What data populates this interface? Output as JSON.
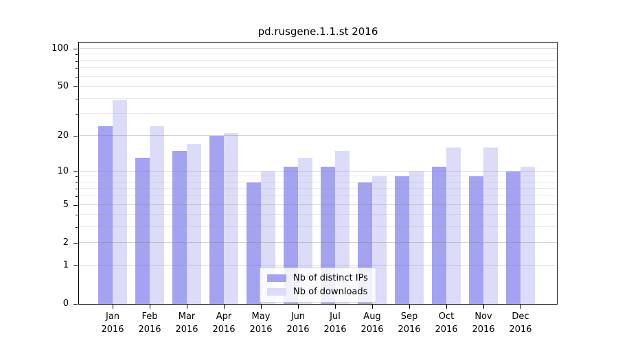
{
  "chart_data": {
    "type": "bar",
    "title": "pd.rusgene.1.1.st 2016",
    "categories": [
      "Jan",
      "Feb",
      "Mar",
      "Apr",
      "May",
      "Jun",
      "Jul",
      "Aug",
      "Sep",
      "Oct",
      "Nov",
      "Dec"
    ],
    "category_year": "2016",
    "series": [
      {
        "name": "Nb of distinct IPs",
        "color": "#a3a3f2",
        "values": [
          24,
          13,
          15,
          20,
          8,
          11,
          11,
          8,
          9,
          11,
          9,
          10
        ]
      },
      {
        "name": "Nb of downloads",
        "color": "#dcdcf9",
        "values": [
          39,
          24,
          17,
          21,
          10,
          13,
          15,
          9,
          10,
          16,
          16,
          11
        ]
      }
    ],
    "y_scale": "log10(1+y)",
    "y_major_ticks": [
      0,
      1,
      2,
      5,
      10,
      20,
      50,
      100
    ],
    "y_minor_ticks": [
      3,
      4,
      6,
      7,
      8,
      9,
      30,
      40,
      60,
      70,
      80,
      90
    ],
    "ylim": [
      0,
      115
    ],
    "grid": true,
    "legend_position": "inside-lower-center"
  },
  "colors": {
    "background": "#ffffff",
    "axis": "#000000",
    "bar_distinct_ips": "#a3a3f2",
    "bar_downloads": "#dcdcf9",
    "legend_border": "#cccccc"
  }
}
